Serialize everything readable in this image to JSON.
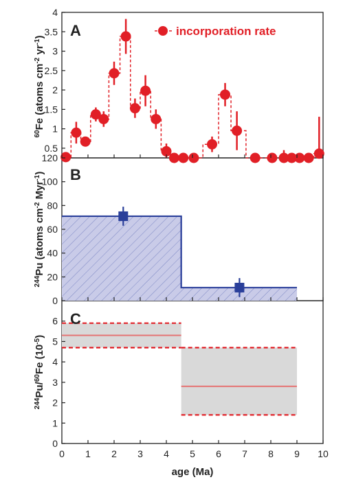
{
  "chart_data": [
    {
      "type": "scatter",
      "panel": "A",
      "ylabel": "60Fe (atoms cm-2 yr-1)",
      "ylim": [
        0.25,
        4
      ],
      "yticks": [
        0.5,
        1,
        1.5,
        2,
        2.5,
        3,
        3.5,
        4
      ],
      "xlim": [
        0,
        10
      ],
      "legend": {
        "label": "incorporation rate",
        "placement": "top-right"
      },
      "color": "#e11f26",
      "series": [
        {
          "name": "incorporation rate",
          "x": [
            0.15,
            0.55,
            0.9,
            1.3,
            1.6,
            2.0,
            2.45,
            2.8,
            3.2,
            3.6,
            4.0,
            4.3,
            4.65,
            5.05,
            5.75,
            6.25,
            6.7,
            7.4,
            8.05,
            8.5,
            8.8,
            9.1,
            9.45,
            9.85
          ],
          "y": [
            0.27,
            0.9,
            0.67,
            1.37,
            1.25,
            2.43,
            3.38,
            1.53,
            1.98,
            1.25,
            0.42,
            0.18,
            0.2,
            0.09,
            0.6,
            1.88,
            0.95,
            0.16,
            0.18,
            0.2,
            0.18,
            0.16,
            0.16,
            0.36
          ],
          "yerr": [
            0.1,
            0.28,
            0.12,
            0.18,
            0.2,
            0.3,
            0.45,
            0.25,
            0.4,
            0.25,
            0.2,
            0.15,
            0.18,
            0.12,
            0.2,
            0.3,
            0.5,
            0.12,
            0.15,
            0.25,
            0.15,
            0.12,
            0.12,
            0.95
          ]
        }
      ]
    },
    {
      "type": "area",
      "panel": "B",
      "ylabel": "244Pu (atoms cm-2 Myr-1)",
      "ylim": [
        0,
        120
      ],
      "yticks": [
        0,
        20,
        40,
        60,
        80,
        100,
        120
      ],
      "xlim": [
        0,
        10
      ],
      "color": "#2a3f9a",
      "steps": [
        {
          "x_start": 0,
          "x_end": 4.57,
          "value": 71
        },
        {
          "x_start": 4.57,
          "x_end": 9,
          "value": 11
        }
      ],
      "points": [
        {
          "x": 2.35,
          "y": 71,
          "yerr": 8,
          "xerr": 0.15
        },
        {
          "x": 6.8,
          "y": 11,
          "yerr": 8,
          "xerr": 0.15
        }
      ]
    },
    {
      "type": "area",
      "panel": "C",
      "ylabel": "244Pu/60Fe (10-5)",
      "xlabel": "age (Ma)",
      "ylim": [
        0,
        7
      ],
      "yticks": [
        0,
        1,
        2,
        3,
        4,
        5,
        6
      ],
      "xlim": [
        0,
        10
      ],
      "xticks": [
        0,
        1,
        2,
        3,
        4,
        5,
        6,
        7,
        8,
        9,
        10
      ],
      "color": "#e11f26",
      "bands": [
        {
          "x_start": 0,
          "x_end": 4.57,
          "mean": 5.3,
          "low": 4.7,
          "high": 5.9
        },
        {
          "x_start": 4.57,
          "x_end": 9,
          "mean": 2.8,
          "low": 1.4,
          "high": 4.7
        }
      ]
    }
  ],
  "text": {
    "panel_a": "A",
    "panel_b": "B",
    "panel_c": "C",
    "legend": "incorporation rate",
    "xlabel": "age (Ma)",
    "ylabel_a_iso": "60",
    "ylabel_a_main": "Fe (atoms cm",
    "ylabel_a_exp1": "-2",
    "ylabel_a_mid": " yr",
    "ylabel_a_exp2": "-1",
    "ylabel_a_end": ")",
    "ylabel_b_iso": "244",
    "ylabel_b_main": "Pu  (atoms cm",
    "ylabel_b_exp1": "-2",
    "ylabel_b_mid": " Myr",
    "ylabel_b_exp2": "-1",
    "ylabel_b_end": ")",
    "ylabel_c_iso1": "244",
    "ylabel_c_main1": "Pu/",
    "ylabel_c_iso2": "60",
    "ylabel_c_main2": "Fe (10",
    "ylabel_c_exp": "-5",
    "ylabel_c_end": ")"
  }
}
